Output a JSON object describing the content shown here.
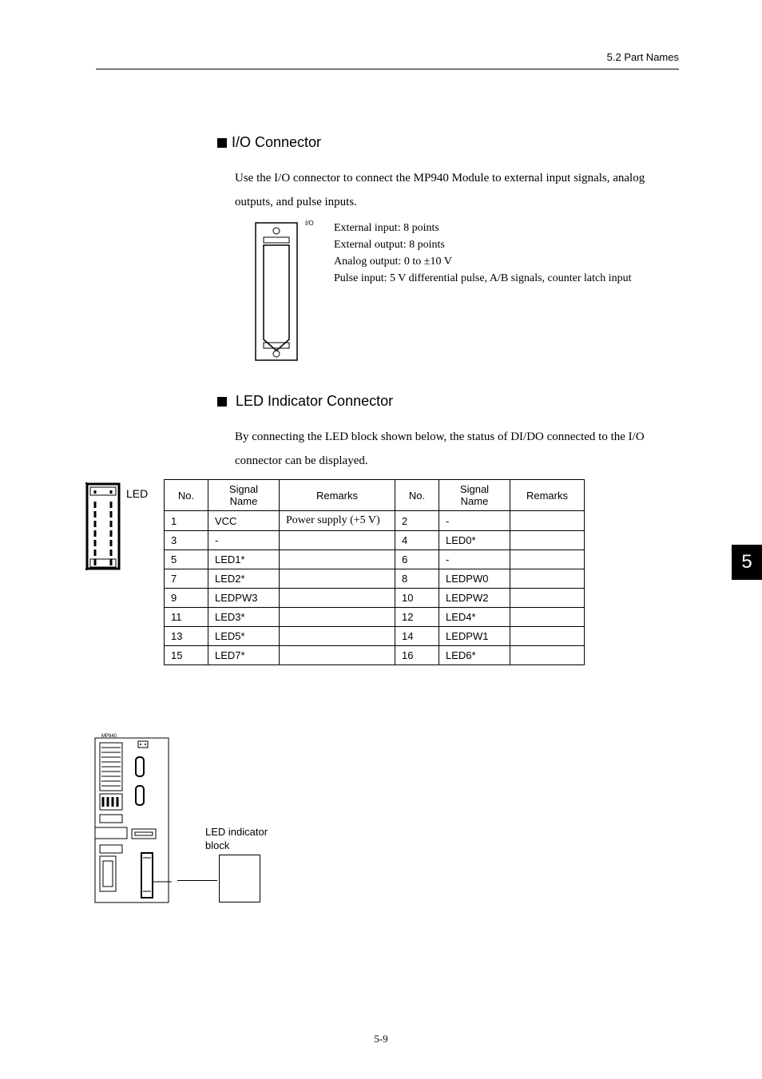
{
  "header": {
    "section": "5.2  Part Names"
  },
  "section1": {
    "title": "I/O Connector",
    "paragraph": "Use the I/O connector to connect the MP940 Module to external input signals, analog outputs, and pulse inputs.",
    "io_label": "I/O",
    "specs": [
      "External input: 8 points",
      "External output: 8 points",
      "Analog output: 0 to ±10 V",
      "Pulse input: 5 V differential pulse, A/B signals, counter latch input"
    ]
  },
  "section2": {
    "title": " LED Indicator Connector",
    "paragraph": "By connecting the LED block shown below, the status of DI/DO connected to the I/O connector can be displayed.",
    "led_label": "LED"
  },
  "table": {
    "headers": {
      "no": "No.",
      "signal": "Signal Name",
      "remarks": "Remarks"
    },
    "rows": [
      {
        "no1": "1",
        "sig1": "VCC",
        "rem1": "Power supply (+5 V)",
        "no2": "2",
        "sig2": "-",
        "rem2": ""
      },
      {
        "no1": "3",
        "sig1": "-",
        "rem1": "",
        "no2": "4",
        "sig2": "LED0*",
        "rem2": ""
      },
      {
        "no1": "5",
        "sig1": "LED1*",
        "rem1": "",
        "no2": "6",
        "sig2": "-",
        "rem2": ""
      },
      {
        "no1": "7",
        "sig1": "LED2*",
        "rem1": "",
        "no2": "8",
        "sig2": "LEDPW0",
        "rem2": ""
      },
      {
        "no1": "9",
        "sig1": "LEDPW3",
        "rem1": "",
        "no2": "10",
        "sig2": "LEDPW2",
        "rem2": ""
      },
      {
        "no1": "11",
        "sig1": "LED3*",
        "rem1": "",
        "no2": "12",
        "sig2": "LED4*",
        "rem2": ""
      },
      {
        "no1": "13",
        "sig1": "LED5*",
        "rem1": "",
        "no2": "14",
        "sig2": "LEDPW1",
        "rem2": ""
      },
      {
        "no1": "15",
        "sig1": "LED7*",
        "rem1": "",
        "no2": "16",
        "sig2": "LED6*",
        "rem2": ""
      }
    ]
  },
  "indicator": {
    "label_line1": "LED indicator",
    "label_line2": "block"
  },
  "module_label": "MP940",
  "page_tab": "5",
  "footer": "5-9",
  "style": {
    "page_bg": "#ffffff",
    "text_color": "#000000",
    "tab_bg": "#000000",
    "tab_fg": "#ffffff",
    "border_color": "#000000",
    "header_fontsize": 13,
    "title_fontsize": 18,
    "body_fontsize": 15,
    "table_fontsize": 13
  }
}
